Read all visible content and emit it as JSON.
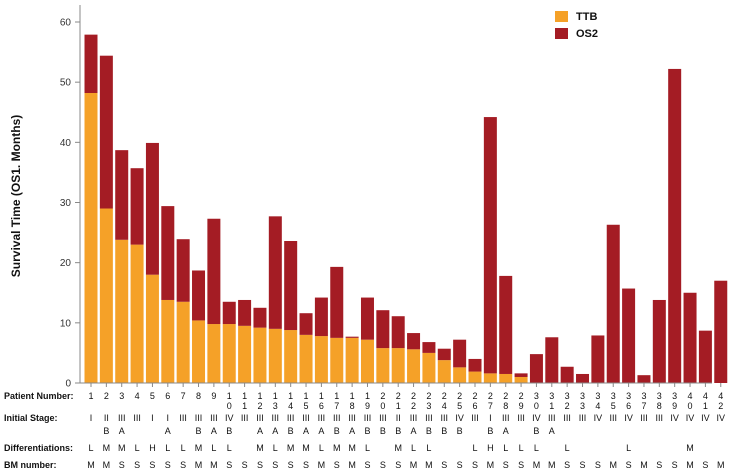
{
  "chart_data": {
    "type": "bar",
    "stacked": true,
    "ylabel": "Survival Time (OS1. Months)",
    "ylim": [
      0,
      60
    ],
    "yticks": [
      0,
      10,
      20,
      30,
      40,
      50,
      60
    ],
    "series": [
      {
        "name": "TTB",
        "color": "#f5a128",
        "values": [
          48.2,
          29,
          23.8,
          23,
          18,
          13.8,
          13.5,
          10.4,
          9.8,
          9.8,
          9.5,
          9.2,
          9,
          8.8,
          8,
          7.8,
          7.5,
          7.5,
          7.2,
          5.8,
          5.8,
          5.6,
          5,
          3.8,
          2.6,
          1.9,
          1.6,
          1.5,
          1,
          0,
          0,
          0,
          0,
          0,
          0,
          0,
          0,
          0,
          0,
          0,
          0,
          0
        ]
      },
      {
        "name": "OS2",
        "color": "#a41c24",
        "values": [
          9.7,
          25.4,
          14.9,
          12.7,
          21.9,
          15.6,
          10.4,
          8.3,
          17.5,
          3.7,
          4.3,
          3.3,
          18.7,
          14.8,
          3.6,
          6.4,
          11.8,
          0.2,
          7,
          6.3,
          5.3,
          2.7,
          1.8,
          1.9,
          4.6,
          2.1,
          42.6,
          16.3,
          0.6,
          4.8,
          7.6,
          2.7,
          1.5,
          7.9,
          26.3,
          15.7,
          1.3,
          13.8,
          52.2,
          15,
          8.7,
          17
        ]
      }
    ],
    "patient_labels": [
      "1",
      "2",
      "3",
      "4",
      "5",
      "6",
      "7",
      "8",
      "9",
      "10",
      "11",
      "12",
      "13",
      "14",
      "15",
      "16",
      "17",
      "18",
      "19",
      "20",
      "21",
      "22",
      "23",
      "24",
      "25",
      "26",
      "27",
      "28",
      "29",
      "30",
      "31",
      "32",
      "33",
      "34",
      "35",
      "36",
      "37",
      "38",
      "39",
      "40",
      "41",
      "42"
    ],
    "rows": [
      {
        "label": "Patient Number:"
      },
      {
        "label": "Initial Stage:",
        "values": [
          "I",
          "II",
          "III",
          "III",
          "I",
          "I",
          "III",
          "III",
          "III",
          "IV",
          "III",
          "III",
          "III",
          "III",
          "III",
          "III",
          "III",
          "III",
          "III",
          "III",
          "II",
          "III",
          "III",
          "III",
          "IV",
          "III",
          "I",
          "III",
          "III",
          "IV",
          "III",
          "III",
          "III",
          "IV",
          "III",
          "IV",
          "III",
          "III",
          "IV",
          "IV",
          "IV",
          "IV"
        ],
        "sub": [
          "",
          "B",
          "A",
          "",
          "",
          "A",
          "",
          "B",
          "A",
          "B",
          "",
          "A",
          "A",
          "B",
          "A",
          "A",
          "B",
          "A",
          "B",
          "B",
          "B",
          "A",
          "B",
          "B",
          "B",
          "",
          "B",
          "A",
          "",
          "B",
          "A",
          "",
          "",
          "",
          "",
          "",
          "",
          "",
          "",
          "",
          "",
          ""
        ]
      },
      {
        "label": "Differentiations:",
        "values": [
          "L",
          "M",
          "M",
          "L",
          "H",
          "L",
          "L",
          "M",
          "L",
          "L",
          "",
          "M",
          "L",
          "M",
          "M",
          "L",
          "M",
          "M",
          "L",
          "",
          "M",
          "L",
          "L",
          "",
          "",
          "L",
          "H",
          "L",
          "L",
          "L",
          "",
          "L",
          "",
          "",
          "",
          "L",
          "",
          "",
          "",
          "M",
          "",
          ""
        ]
      },
      {
        "label": "BM number:",
        "values": [
          "M",
          "M",
          "S",
          "S",
          "S",
          "S",
          "S",
          "M",
          "M",
          "S",
          "S",
          "S",
          "S",
          "S",
          "S",
          "M",
          "S",
          "M",
          "S",
          "S",
          "S",
          "M",
          "M",
          "S",
          "S",
          "S",
          "M",
          "S",
          "S",
          "M",
          "M",
          "S",
          "S",
          "S",
          "M",
          "S",
          "M",
          "S",
          "S",
          "M",
          "S",
          "M"
        ]
      }
    ]
  }
}
